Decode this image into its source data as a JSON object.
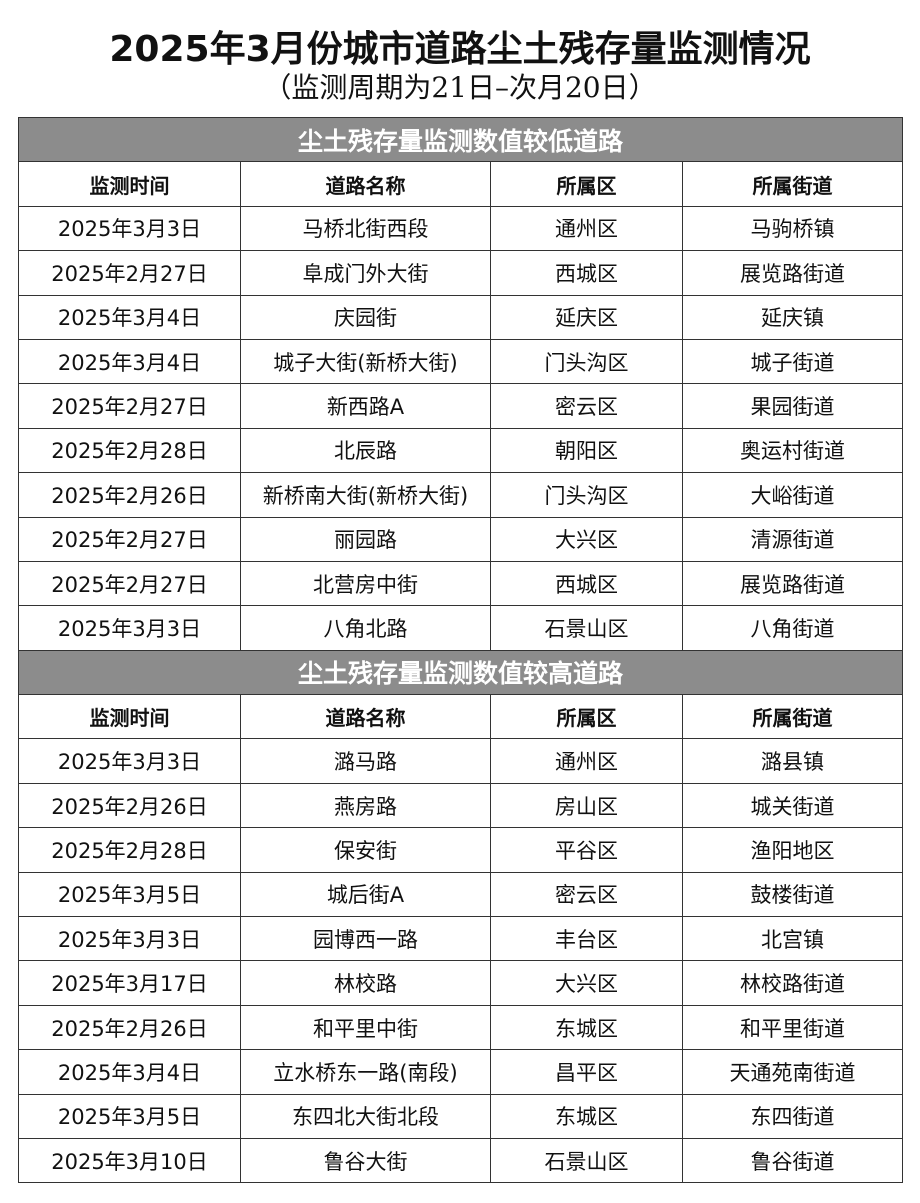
{
  "header": {
    "title": "2025年3月份城市道路尘土残存量监测情况",
    "subtitle": "（监测周期为21日–次月20日）"
  },
  "sections": [
    {
      "title": "尘土残存量监测数值较低道路",
      "headers": [
        "监测时间",
        "道路名称",
        "所属区",
        "所属街道"
      ],
      "rows": [
        [
          "2025年3月3日",
          "马桥北街西段",
          "通州区",
          "马驹桥镇"
        ],
        [
          "2025年2月27日",
          "阜成门外大街",
          "西城区",
          "展览路街道"
        ],
        [
          "2025年3月4日",
          "庆园街",
          "延庆区",
          "延庆镇"
        ],
        [
          "2025年3月4日",
          "城子大街(新桥大街)",
          "门头沟区",
          "城子街道"
        ],
        [
          "2025年2月27日",
          "新西路A",
          "密云区",
          "果园街道"
        ],
        [
          "2025年2月28日",
          "北辰路",
          "朝阳区",
          "奥运村街道"
        ],
        [
          "2025年2月26日",
          "新桥南大街(新桥大街)",
          "门头沟区",
          "大峪街道"
        ],
        [
          "2025年2月27日",
          "丽园路",
          "大兴区",
          "清源街道"
        ],
        [
          "2025年2月27日",
          "北营房中街",
          "西城区",
          "展览路街道"
        ],
        [
          "2025年3月3日",
          "八角北路",
          "石景山区",
          "八角街道"
        ]
      ]
    },
    {
      "title": "尘土残存量监测数值较高道路",
      "headers": [
        "监测时间",
        "道路名称",
        "所属区",
        "所属街道"
      ],
      "rows": [
        [
          "2025年3月3日",
          "潞马路",
          "通州区",
          "潞县镇"
        ],
        [
          "2025年2月26日",
          "燕房路",
          "房山区",
          "城关街道"
        ],
        [
          "2025年2月28日",
          "保安街",
          "平谷区",
          "渔阳地区"
        ],
        [
          "2025年3月5日",
          "城后街A",
          "密云区",
          "鼓楼街道"
        ],
        [
          "2025年3月3日",
          "园博西一路",
          "丰台区",
          "北宫镇"
        ],
        [
          "2025年3月17日",
          "林校路",
          "大兴区",
          "林校路街道"
        ],
        [
          "2025年2月26日",
          "和平里中街",
          "东城区",
          "和平里街道"
        ],
        [
          "2025年3月4日",
          "立水桥东一路(南段)",
          "昌平区",
          "天通苑南街道"
        ],
        [
          "2025年3月5日",
          "东四北大街北段",
          "东城区",
          "东四街道"
        ],
        [
          "2025年3月10日",
          "鲁谷大街",
          "石景山区",
          "鲁谷街道"
        ]
      ]
    }
  ]
}
